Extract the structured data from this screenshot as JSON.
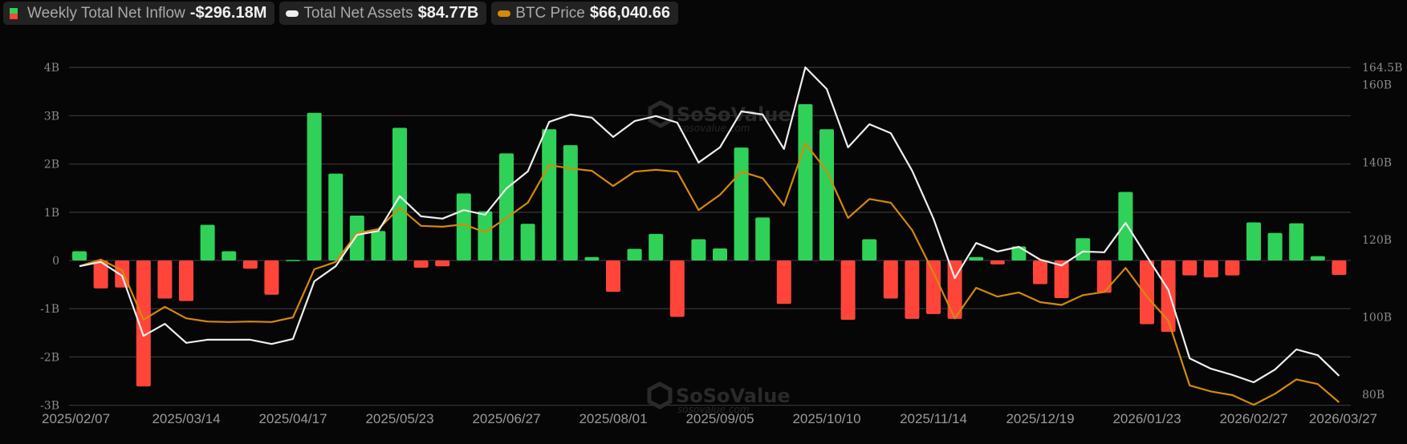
{
  "legend": {
    "inflow": {
      "label": "Weekly Total Net Inflow",
      "value": "-$296.18M",
      "positive_color": "#30d158",
      "negative_color": "#ff453a"
    },
    "assets": {
      "label": "Total Net Assets",
      "value": "$84.77B",
      "color": "#eeeeee"
    },
    "btc": {
      "label": "BTC Price",
      "value": "$66,040.66",
      "color": "#d4890a"
    }
  },
  "watermark": {
    "brand": "SoSoValue",
    "url": "sosovalue.com"
  },
  "chart_data": {
    "type": "bar",
    "title": "",
    "xlabel": "",
    "ylabel": "Weekly Total Net Inflow",
    "ylim": [
      -3,
      4
    ],
    "y_ticks": [
      "4B",
      "3B",
      "2B",
      "1B",
      "0",
      "-1B",
      "-2B",
      "-3B"
    ],
    "y_tick_values": [
      4,
      3,
      2,
      1,
      0,
      -1,
      -2,
      -3
    ],
    "y2_ticks": [
      "164.5B",
      "160B",
      "140B",
      "120B",
      "100B",
      "80B"
    ],
    "y2_tick_values": [
      164.5,
      160,
      140,
      120,
      100,
      80
    ],
    "y2lim": [
      80,
      164.5
    ],
    "grid": true,
    "legend_position": "top-left",
    "x_tick_labels": [
      "2025/02/07",
      "2025/03/14",
      "2025/04/17",
      "2025/05/23",
      "2025/06/27",
      "2025/08/01",
      "2025/09/05",
      "2025/10/10",
      "2025/11/14",
      "2025/12/19",
      "2026/01/23",
      "2026/02/27",
      "2026/03/27"
    ],
    "x_tick_index": [
      0,
      5,
      10,
      15,
      20,
      25,
      30,
      35,
      40,
      45,
      50,
      55,
      59
    ],
    "categories": [
      "2025/02/07",
      "2025/02/14",
      "2025/02/21",
      "2025/02/28",
      "2025/03/07",
      "2025/03/14",
      "2025/03/21",
      "2025/03/28",
      "2025/04/04",
      "2025/04/11",
      "2025/04/17",
      "2025/04/25",
      "2025/05/02",
      "2025/05/09",
      "2025/05/16",
      "2025/05/23",
      "2025/05/30",
      "2025/06/06",
      "2025/06/13",
      "2025/06/20",
      "2025/06/27",
      "2025/07/04",
      "2025/07/11",
      "2025/07/18",
      "2025/07/25",
      "2025/08/01",
      "2025/08/08",
      "2025/08/15",
      "2025/08/22",
      "2025/08/29",
      "2025/09/05",
      "2025/09/12",
      "2025/09/19",
      "2025/09/26",
      "2025/10/03",
      "2025/10/10",
      "2025/10/17",
      "2025/10/24",
      "2025/10/31",
      "2025/11/07",
      "2025/11/14",
      "2025/11/21",
      "2025/11/28",
      "2025/12/05",
      "2025/12/12",
      "2025/12/19",
      "2025/12/26",
      "2026/01/02",
      "2026/01/09",
      "2026/01/16",
      "2026/01/23",
      "2026/01/30",
      "2026/02/06",
      "2026/02/13",
      "2026/02/20",
      "2026/02/27",
      "2026/03/06",
      "2026/03/13",
      "2026/03/20",
      "2026/03/27"
    ],
    "series": [
      {
        "name": "Weekly Total Net Inflow",
        "unit": "B USD",
        "axis": "left",
        "type": "bar",
        "values": [
          0.19,
          -0.58,
          -0.56,
          -2.61,
          -0.79,
          -0.84,
          0.74,
          0.19,
          -0.17,
          -0.71,
          0.01,
          3.06,
          1.8,
          0.93,
          0.61,
          2.75,
          -0.15,
          -0.12,
          1.39,
          1.02,
          2.22,
          0.76,
          2.72,
          2.39,
          0.07,
          -0.65,
          0.24,
          0.55,
          -1.17,
          0.44,
          0.25,
          2.34,
          0.89,
          -0.9,
          3.24,
          2.72,
          -1.23,
          0.44,
          -0.79,
          -1.21,
          -1.11,
          -1.21,
          0.07,
          -0.08,
          0.29,
          -0.49,
          -0.78,
          0.46,
          -0.67,
          1.42,
          -1.32,
          -1.48,
          -0.31,
          -0.35,
          -0.31,
          0.79,
          0.57,
          0.77,
          0.09,
          -0.3
        ]
      },
      {
        "name": "Total Net Assets",
        "unit": "B USD",
        "axis": "right",
        "type": "line",
        "values": [
          113.1,
          114.2,
          110.6,
          95.1,
          98.2,
          93.3,
          94.1,
          94.1,
          94.1,
          93.0,
          94.3,
          109.2,
          113.1,
          121.2,
          122.2,
          131.2,
          126.0,
          125.4,
          127.6,
          126.4,
          133.2,
          137.6,
          150.4,
          152.3,
          151.5,
          146.5,
          150.6,
          151.9,
          150.2,
          139.9,
          143.8,
          153.1,
          152.3,
          143.4,
          164.5,
          158.9,
          143.8,
          149.8,
          147.5,
          137.8,
          125.4,
          110.0,
          119.1,
          116.9,
          118.1,
          114.8,
          113.3,
          116.9,
          116.7,
          124.3,
          115.6,
          107.0,
          89.3,
          86.6,
          85.0,
          83.1,
          86.4,
          91.6,
          90.1,
          84.77
        ]
      },
      {
        "name": "BTC Price",
        "unit": "USD",
        "axis": "hidden",
        "type": "line",
        "values": [
          95500,
          96900,
          94600,
          83900,
          86700,
          84200,
          83500,
          83400,
          83500,
          83400,
          84400,
          94800,
          96400,
          102600,
          103500,
          108100,
          104200,
          104000,
          104500,
          102800,
          105900,
          109200,
          117300,
          116600,
          116100,
          112800,
          115900,
          116300,
          115900,
          107600,
          110900,
          115900,
          114500,
          108600,
          122000,
          116100,
          105900,
          110000,
          109200,
          103300,
          94100,
          84200,
          90800,
          88900,
          89800,
          87700,
          87100,
          89200,
          89900,
          95100,
          88900,
          83700,
          69700,
          68400,
          67600,
          65500,
          67900,
          71000,
          70000,
          66040.66
        ]
      }
    ]
  }
}
